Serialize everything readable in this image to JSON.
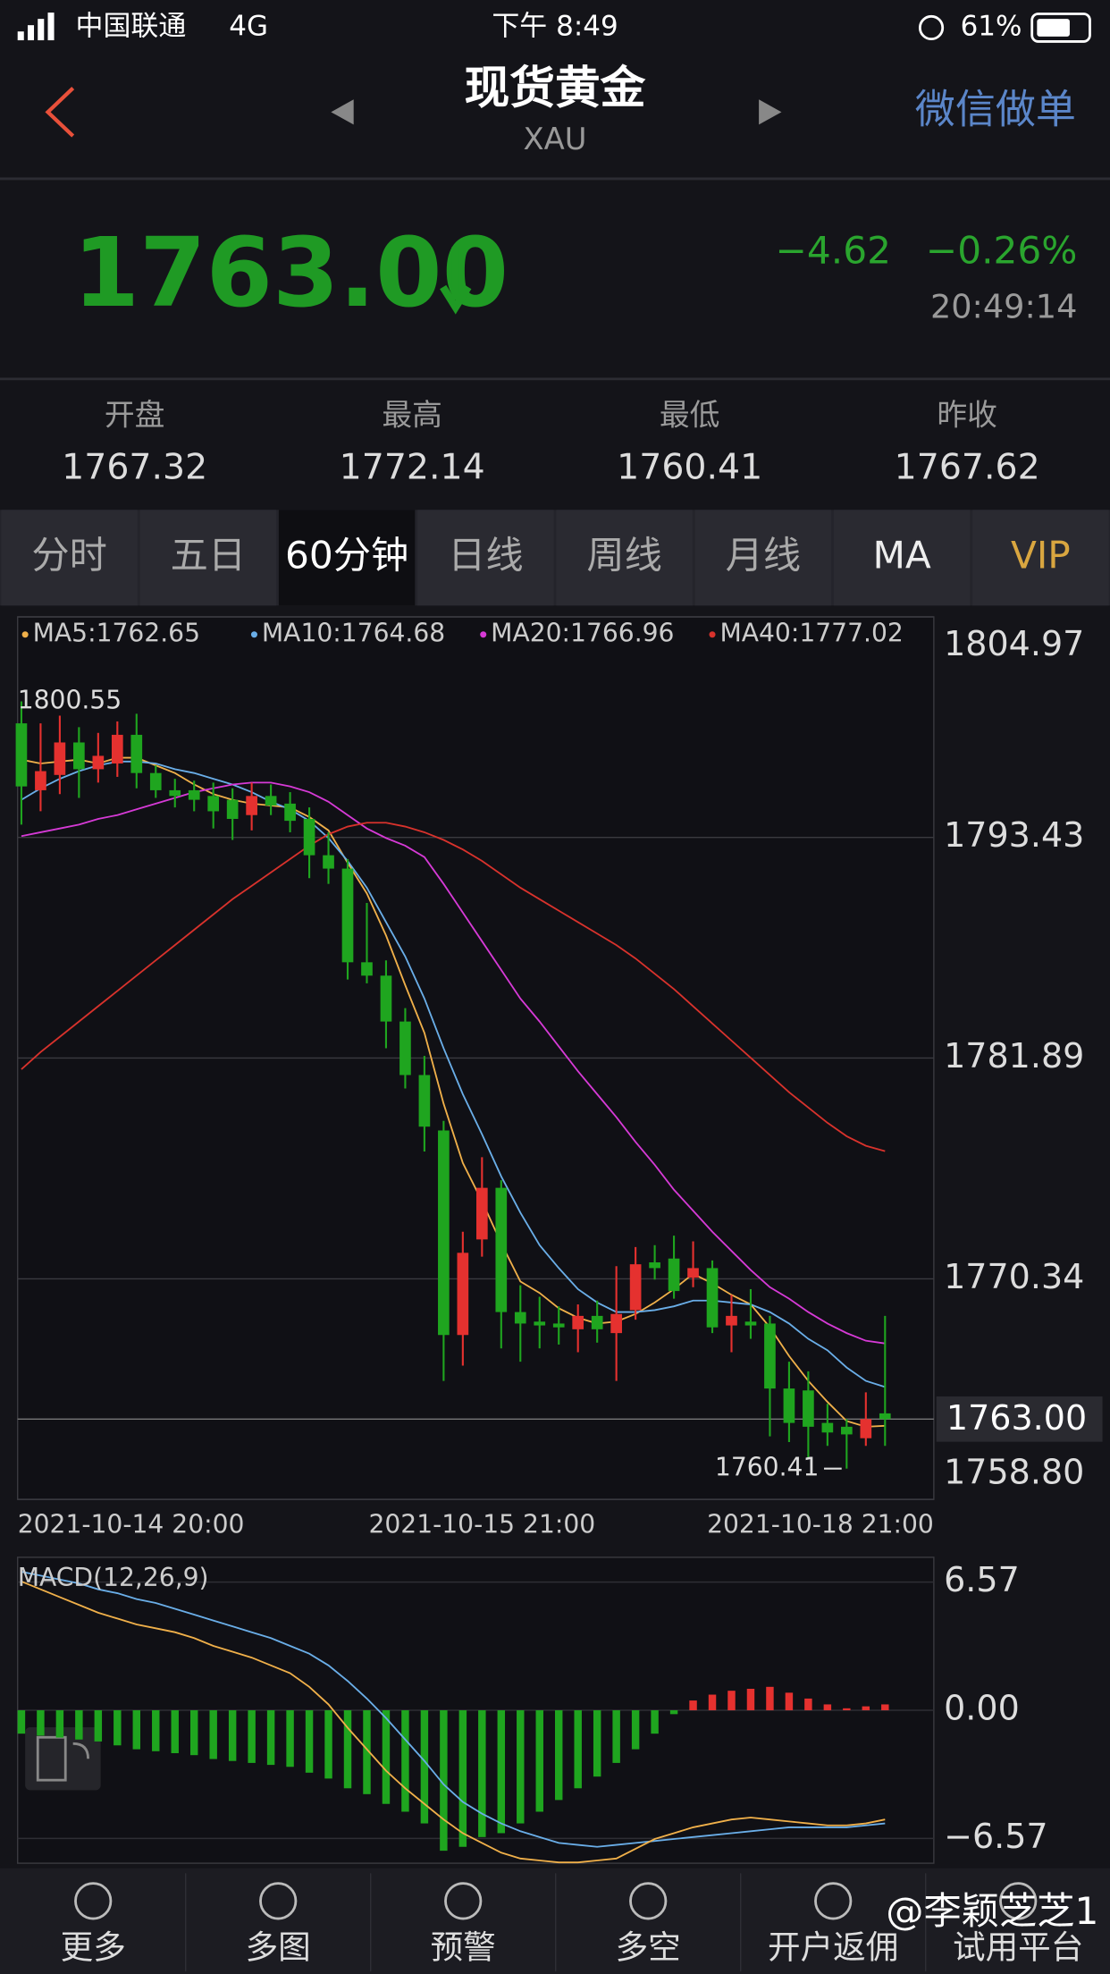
{
  "status_bar": {
    "carrier": "中国联通",
    "network": "4G",
    "time": "下午 8:49",
    "battery": "61%"
  },
  "header": {
    "title": "现货黄金",
    "subtitle": "XAU",
    "action": "微信做单"
  },
  "quote": {
    "price": "1763.00",
    "change": "−4.62",
    "change_percent": "−0.26%",
    "time": "20:49:14"
  },
  "stats": [
    {
      "label": "开盘",
      "value": "1767.32"
    },
    {
      "label": "最高",
      "value": "1772.14"
    },
    {
      "label": "最低",
      "value": "1760.41"
    },
    {
      "label": "昨收",
      "value": "1767.62"
    }
  ],
  "tabs": [
    "分时",
    "五日",
    "60分钟",
    "日线",
    "周线",
    "月线",
    "MA",
    "VIP"
  ],
  "chart_data": [
    {
      "type": "candlestick",
      "categories": [
        "2021-10-14 20:00",
        null,
        null,
        null,
        null,
        null,
        null,
        null,
        null,
        null,
        null,
        null,
        null,
        null,
        null,
        null,
        null,
        null,
        null,
        null,
        null,
        null,
        null,
        null,
        "2021-10-15 21:00",
        null,
        null,
        null,
        null,
        null,
        null,
        null,
        null,
        null,
        null,
        null,
        null,
        null,
        null,
        null,
        null,
        null,
        null,
        null,
        null,
        "2021-10-18 21:00"
      ],
      "open": [
        1799.4,
        1795.9,
        1796.7,
        1798.4,
        1797.0,
        1797.3,
        1798.8,
        1796.8,
        1795.9,
        1795.9,
        1795.6,
        1795.4,
        1794.6,
        1795.6,
        1795.2,
        1794.4,
        1792.5,
        1791.8,
        1786.9,
        1786.2,
        1783.8,
        1781.0,
        1778.1,
        1767.4,
        1772.4,
        1775.1,
        1768.6,
        1768.1,
        1768.0,
        1767.7,
        1768.4,
        1767.5,
        1768.7,
        1771.2,
        1771.4,
        1770.4,
        1770.9,
        1767.9,
        1768.1,
        1768.0,
        1764.6,
        1764.5,
        1762.8,
        1762.6,
        1762.0,
        1763.3
      ],
      "high": [
        1800.55,
        1799.4,
        1799.8,
        1799.2,
        1798.9,
        1799.5,
        1799.9,
        1797.2,
        1796.5,
        1796.4,
        1796.3,
        1796.0,
        1796.3,
        1796.2,
        1795.8,
        1795.0,
        1793.7,
        1792.3,
        1790.0,
        1787.0,
        1784.5,
        1782.0,
        1778.6,
        1772.8,
        1776.7,
        1775.5,
        1770.0,
        1769.4,
        1768.9,
        1769.0,
        1769.2,
        1771.0,
        1772.0,
        1772.1,
        1772.6,
        1772.3,
        1771.3,
        1769.5,
        1769.8,
        1768.4,
        1766.0,
        1765.5,
        1763.8,
        1763.0,
        1764.4,
        1768.4
      ],
      "low": [
        1794.1,
        1794.8,
        1795.7,
        1795.5,
        1796.3,
        1796.6,
        1796.0,
        1795.5,
        1795.0,
        1794.8,
        1793.9,
        1793.3,
        1793.8,
        1794.6,
        1793.7,
        1791.3,
        1791.0,
        1786.0,
        1785.8,
        1782.4,
        1780.3,
        1777.0,
        1765.0,
        1765.8,
        1771.5,
        1766.7,
        1766.0,
        1766.7,
        1766.9,
        1766.5,
        1767.0,
        1765.0,
        1768.2,
        1770.3,
        1769.3,
        1769.9,
        1767.5,
        1766.5,
        1767.2,
        1762.1,
        1761.8,
        1760.9,
        1761.6,
        1760.41,
        1761.6,
        1761.6
      ],
      "close": [
        1796.1,
        1796.9,
        1798.4,
        1797.0,
        1797.7,
        1798.8,
        1796.8,
        1795.9,
        1795.6,
        1795.4,
        1794.8,
        1794.4,
        1795.6,
        1795.1,
        1794.3,
        1792.5,
        1791.8,
        1786.9,
        1786.2,
        1783.8,
        1781.0,
        1778.3,
        1767.4,
        1771.7,
        1775.1,
        1768.6,
        1768.0,
        1767.9,
        1767.8,
        1768.4,
        1767.7,
        1768.5,
        1771.1,
        1770.9,
        1769.7,
        1770.9,
        1767.8,
        1768.4,
        1767.9,
        1764.6,
        1762.8,
        1762.6,
        1762.3,
        1762.2,
        1763.0,
        1763.0
      ],
      "up_color": "#e5312f",
      "down_color": "#1fa51f",
      "series": [
        {
          "name": "MA5:1762.65",
          "color": "#f0b04a",
          "values": [
            1797.5,
            1797.3,
            1797.4,
            1797.5,
            1797.3,
            1797.6,
            1797.6,
            1797.2,
            1796.8,
            1796.2,
            1795.7,
            1795.4,
            1795.2,
            1795.1,
            1795.0,
            1794.5,
            1793.8,
            1792.1,
            1790.5,
            1788.3,
            1785.7,
            1783.2,
            1779.5,
            1776.4,
            1774.4,
            1772.2,
            1770.2,
            1769.6,
            1768.8,
            1768.3,
            1768.0,
            1768.1,
            1768.5,
            1769.1,
            1769.8,
            1770.6,
            1770.1,
            1769.5,
            1769.0,
            1767.8,
            1766.3,
            1765.0,
            1763.9,
            1762.9,
            1762.6,
            1762.65
          ]
        },
        {
          "name": "MA10:1764.68",
          "color": "#6aaee8",
          "values": [
            1795.4,
            1796.0,
            1796.5,
            1796.9,
            1797.2,
            1797.4,
            1797.4,
            1797.3,
            1797.0,
            1796.8,
            1796.5,
            1796.2,
            1795.8,
            1795.3,
            1794.9,
            1794.3,
            1793.4,
            1792.2,
            1790.8,
            1789.0,
            1787.2,
            1785.0,
            1782.4,
            1780.0,
            1777.9,
            1775.7,
            1773.8,
            1772.1,
            1770.9,
            1769.8,
            1769.1,
            1768.6,
            1768.6,
            1768.7,
            1768.9,
            1769.2,
            1769.2,
            1769.1,
            1769.0,
            1768.6,
            1768.0,
            1767.2,
            1766.6,
            1765.7,
            1765.0,
            1764.68
          ]
        },
        {
          "name": "MA20:1766.96",
          "color": "#d63ad6",
          "values": [
            1793.5,
            1793.7,
            1793.9,
            1794.1,
            1794.4,
            1794.6,
            1794.9,
            1795.2,
            1795.5,
            1795.8,
            1796.0,
            1796.2,
            1796.3,
            1796.3,
            1796.1,
            1795.8,
            1795.3,
            1794.6,
            1793.9,
            1793.4,
            1793.0,
            1792.4,
            1791.0,
            1789.5,
            1788.0,
            1786.5,
            1785.0,
            1783.8,
            1782.5,
            1781.2,
            1780.0,
            1778.8,
            1777.5,
            1776.3,
            1775.0,
            1773.9,
            1772.8,
            1771.8,
            1770.8,
            1769.9,
            1769.3,
            1768.6,
            1768.0,
            1767.5,
            1767.1,
            1766.96
          ]
        },
        {
          "name": "MA40:1777.02",
          "color": "#d8322c",
          "values": [
            1781.3,
            1782.2,
            1783.0,
            1783.8,
            1784.6,
            1785.4,
            1786.2,
            1787.0,
            1787.8,
            1788.6,
            1789.4,
            1790.2,
            1790.9,
            1791.6,
            1792.3,
            1793.0,
            1793.6,
            1794.0,
            1794.2,
            1794.2,
            1794.0,
            1793.7,
            1793.3,
            1792.8,
            1792.2,
            1791.5,
            1790.8,
            1790.2,
            1789.6,
            1789.0,
            1788.4,
            1787.8,
            1787.1,
            1786.3,
            1785.5,
            1784.6,
            1783.7,
            1782.8,
            1781.9,
            1781.0,
            1780.1,
            1779.3,
            1778.5,
            1777.8,
            1777.3,
            1777.02
          ]
        }
      ],
      "ylim": [
        1758.8,
        1804.97
      ],
      "yticks": [
        {
          "value": 1758.8,
          "label": "1758.80"
        },
        1770.34,
        1781.89,
        1793.43,
        1804.97
      ],
      "grid": true,
      "price_line": {
        "value": 1763,
        "label": "1763.00"
      }
    },
    {
      "type": "macd",
      "title": "MACD(12,26,9)",
      "values": [
        -1.2,
        -1.3,
        -1.4,
        -1.5,
        -1.6,
        -1.8,
        -2.0,
        -2.1,
        -2.2,
        -2.3,
        -2.5,
        -2.6,
        -2.7,
        -2.8,
        -2.9,
        -3.2,
        -3.5,
        -4.0,
        -4.3,
        -4.8,
        -5.2,
        -5.8,
        -7.2,
        -7.0,
        -6.5,
        -6.3,
        -5.8,
        -5.2,
        -4.6,
        -4.0,
        -3.4,
        -2.7,
        -2.0,
        -1.2,
        -0.2,
        0.5,
        0.8,
        1.0,
        1.1,
        1.2,
        0.9,
        0.6,
        0.3,
        0.1,
        0.2,
        0.3
      ],
      "up_color": "#e5312f",
      "down_color": "#1fa51f",
      "series": [
        {
          "color": "#6aaee8",
          "values": [
            7.1,
            6.9,
            6.7,
            6.5,
            6.2,
            6.0,
            5.7,
            5.5,
            5.2,
            4.9,
            4.6,
            4.3,
            4.0,
            3.7,
            3.3,
            2.9,
            2.3,
            1.5,
            0.6,
            -0.4,
            -1.5,
            -2.6,
            -3.8,
            -4.7,
            -5.3,
            -5.8,
            -6.2,
            -6.5,
            -6.8,
            -6.9,
            -7.0,
            -6.9,
            -6.8,
            -6.7,
            -6.6,
            -6.5,
            -6.4,
            -6.3,
            -6.2,
            -6.1,
            -6.0,
            -6.0,
            -6.0,
            -6.0,
            -5.9,
            -5.8
          ]
        },
        {
          "color": "#f0b04a",
          "values": [
            6.6,
            6.2,
            5.8,
            5.4,
            5.0,
            4.7,
            4.4,
            4.2,
            4.0,
            3.7,
            3.3,
            3.0,
            2.7,
            2.3,
            1.9,
            1.2,
            0.3,
            -0.9,
            -2.0,
            -3.1,
            -4.0,
            -4.8,
            -5.6,
            -6.3,
            -6.8,
            -7.3,
            -7.6,
            -7.7,
            -7.8,
            -7.8,
            -7.7,
            -7.6,
            -7.1,
            -6.6,
            -6.3,
            -6.0,
            -5.8,
            -5.6,
            -5.5,
            -5.6,
            -5.7,
            -5.8,
            -5.9,
            -5.9,
            -5.8,
            -5.6
          ]
        }
      ],
      "ylim": [
        -7.84,
        7.84
      ],
      "yticks": [
        {
          "value": -6.57,
          "label": "−6.57"
        },
        {
          "value": 0,
          "label": "0.00"
        },
        6.57
      ],
      "grid": true
    }
  ],
  "nav": [
    "更多",
    "多图",
    "预警",
    "多空",
    "开户返佣",
    "试用平台"
  ],
  "watermark": "@李颖芝芝1"
}
